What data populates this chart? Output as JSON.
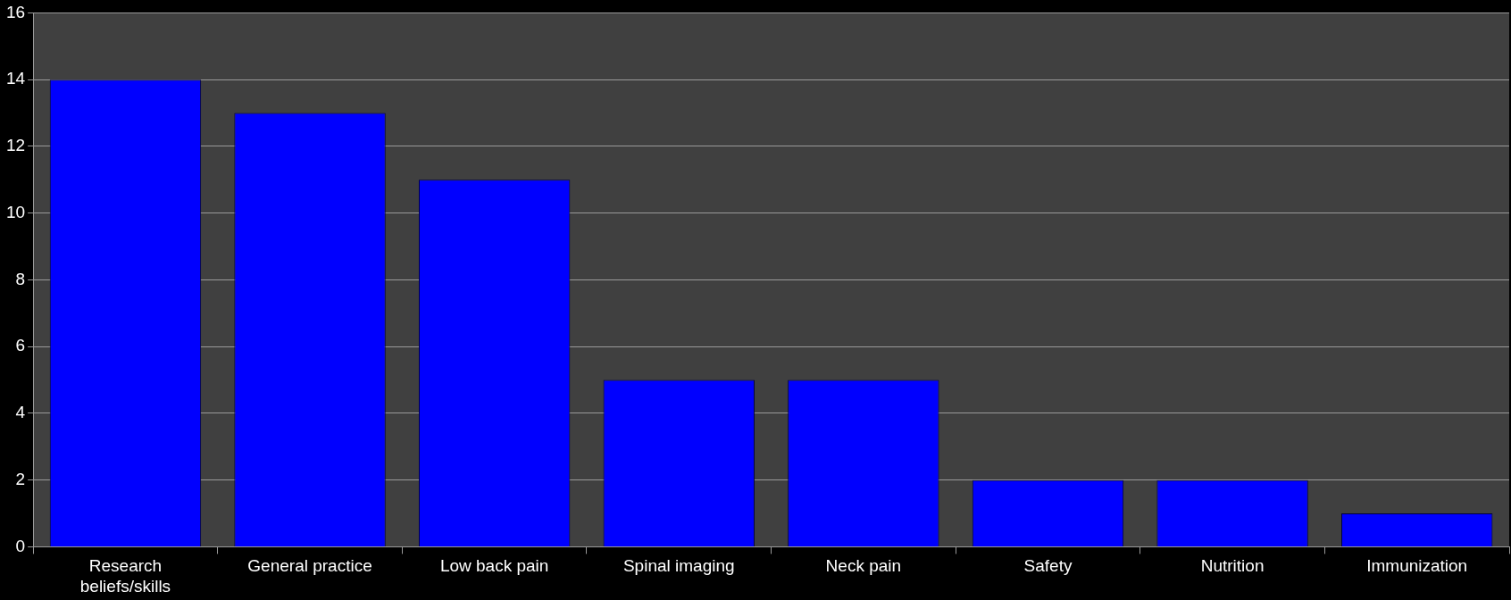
{
  "chart_data": {
    "type": "bar",
    "categories": [
      "Research beliefs/skills",
      "General practice",
      "Low back pain",
      "Spinal imaging",
      "Neck pain",
      "Safety",
      "Nutrition",
      "Immunization"
    ],
    "values": [
      14,
      13,
      11,
      5,
      5,
      2,
      2,
      1
    ],
    "color": "#0000ff",
    "ylim": [
      0,
      16
    ],
    "yticks": [
      0,
      2,
      4,
      6,
      8,
      10,
      12,
      14,
      16
    ],
    "grid": "y",
    "legend": false
  }
}
